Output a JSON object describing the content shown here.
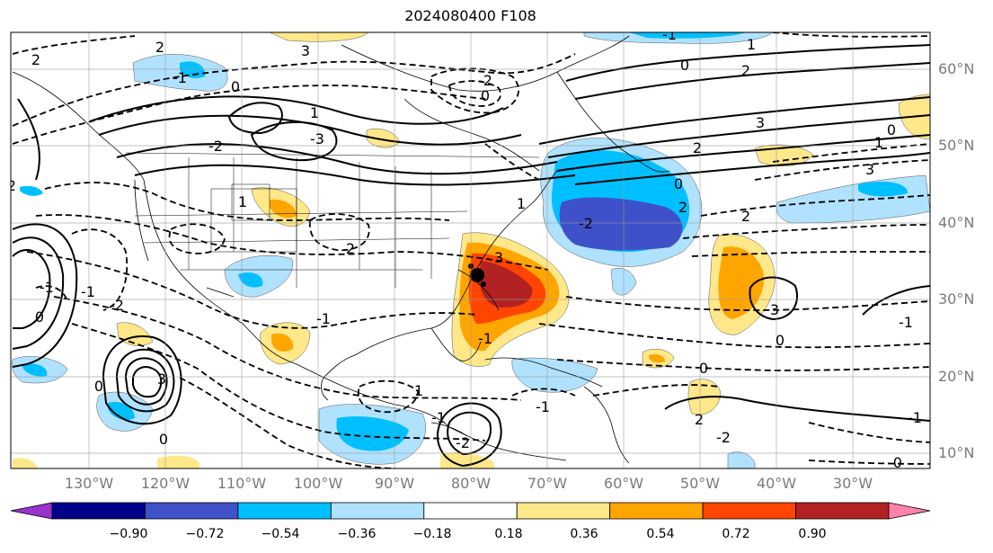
{
  "title": "2024080400 F108",
  "lat_labels": [
    "60°N",
    "50°N",
    "40°N",
    "30°N",
    "20°N",
    "10°N"
  ],
  "lon_labels": [
    "130°W",
    "120°W",
    "110°W",
    "100°W",
    "90°W",
    "80°W",
    "70°W",
    "60°W",
    "50°W",
    "40°W",
    "30°W"
  ],
  "colorbar": {
    "labels": [
      "−0.90",
      "−0.72",
      "−0.54",
      "−0.36",
      "−0.18",
      "0.18",
      "0.36",
      "0.54",
      "0.72",
      "0.90"
    ],
    "colors": [
      "#9a32cd",
      "#00008b",
      "#3f51c8",
      "#00bfff",
      "#b0e2ff",
      "#ffffff",
      "#ffe88a",
      "#ffa500",
      "#ff4500",
      "#b22222",
      "#ff82ab"
    ]
  },
  "contour_labels": [
    "2",
    "3",
    "2",
    "-1",
    "0",
    "0",
    "-2",
    "0",
    "2",
    "1",
    "-1",
    "3",
    "2",
    "1",
    "0",
    "3",
    "2",
    "1",
    "-3",
    "1",
    "-2",
    "2",
    "0",
    "-2",
    "1",
    "3",
    "2",
    "-1",
    "-2",
    "3",
    "-1",
    "0",
    "-1",
    "-1",
    "0",
    "1",
    "0",
    "-2",
    "-1",
    "-1",
    "2",
    "3",
    "0",
    "0",
    "-2",
    "-1",
    "-1",
    "-0",
    "-2"
  ]
}
